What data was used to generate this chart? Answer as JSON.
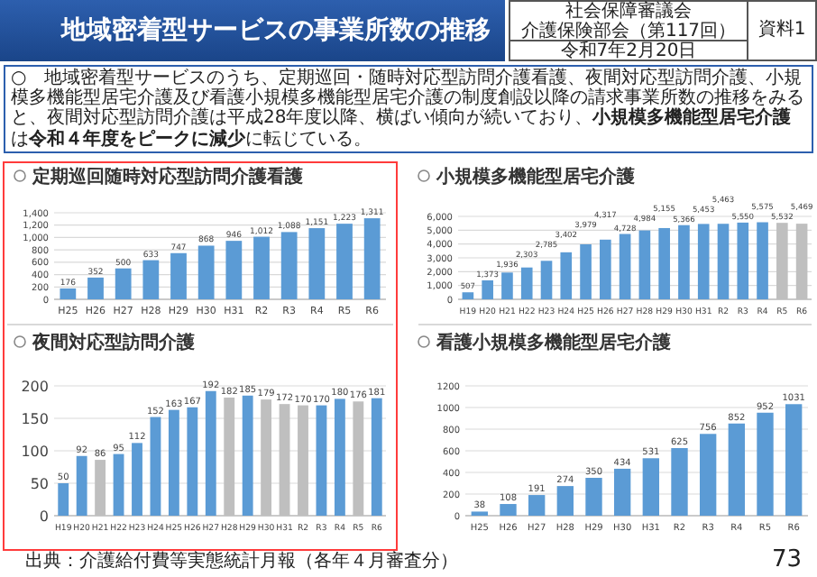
{
  "chart_data": [
    {
      "type": "other",
      "title": "地域密着型サービスの事業所数の推移",
      "annotations": [
        "社会保障審議会",
        "介護保険部会（第117回）",
        "令和7年2月20日",
        "資料1",
        "○　地域密着型サービスのうち、定期巡回・随時対応型訪問介護看護、夜間対応型訪問介護、小規模多機能型居宅介護及び看護小規模多機能型居宅介護の制度創設以降の請求事業所数の推移をみると、夜間対応型訪問介護は平成28年度以降、横ばい傾向が続いており、**小規模多機能型居宅介護**は**令和４年度をピークに減少**に転じている。",
        "出典：介護給付費等実態統計月報（各年４月審査分）",
        "73"
      ]
    },
    {
      "type": "bar",
      "title": "定期巡回随時対応型訪問介護看護",
      "categories": [
        "H25",
        "H26",
        "H27",
        "H28",
        "H29",
        "H30",
        "H31",
        "R2",
        "R3",
        "R4",
        "R5",
        "R6"
      ],
      "values": [
        176,
        352,
        500,
        633,
        747,
        868,
        946,
        1012,
        1088,
        1151,
        1223,
        1311
      ],
      "value_labels": [
        "176",
        "352",
        "500",
        "633",
        "747",
        "868",
        "946",
        "1,012",
        "1,088",
        "1,151",
        "1,223",
        "1,311"
      ],
      "color": "#5b9bd5",
      "ylim": [
        0,
        1400
      ],
      "yticks": [
        0,
        200,
        400,
        600,
        800,
        {
          "value": 1000,
          "label": "1,000"
        },
        {
          "value": 1200,
          "label": "1,200"
        },
        {
          "value": 1400,
          "label": "1,400"
        }
      ],
      "grid": "y"
    },
    {
      "type": "bar",
      "title": "小規模多機能型居宅介護",
      "categories": [
        "H19",
        "H20",
        "H21",
        "H22",
        "H23",
        "H24",
        "H25",
        "H26",
        "H27",
        "H28",
        "H29",
        "H30",
        "H31",
        "R2",
        "R3",
        "R4",
        "R5",
        "R6"
      ],
      "values": [
        507,
        1373,
        1936,
        2303,
        2785,
        3402,
        3979,
        4317,
        4728,
        4984,
        5155,
        5366,
        5453,
        5463,
        5550,
        5575,
        5532,
        5469
      ],
      "value_labels": [
        "507",
        "1,373",
        "1,936",
        "2,303",
        "2,785",
        "3,402",
        "3,979",
        "4,317",
        "4,728",
        "4,984",
        "5,155",
        "5,366",
        "5,453",
        "5,463",
        "5,550",
        "5,575",
        "5,532",
        "5,469"
      ],
      "colors": [
        "#5b9bd5",
        "#5b9bd5",
        "#5b9bd5",
        "#5b9bd5",
        "#5b9bd5",
        "#5b9bd5",
        "#5b9bd5",
        "#5b9bd5",
        "#5b9bd5",
        "#5b9bd5",
        "#5b9bd5",
        "#5b9bd5",
        "#5b9bd5",
        "#5b9bd5",
        "#5b9bd5",
        "#5b9bd5",
        "#bfbfbf",
        "#bfbfbf"
      ],
      "ylim": [
        0,
        6000
      ],
      "yticks": [
        0,
        {
          "value": 1000,
          "label": "1,000"
        },
        {
          "value": 2000,
          "label": "2,000"
        },
        {
          "value": 3000,
          "label": "3,000"
        },
        {
          "value": 4000,
          "label": "4,000"
        },
        {
          "value": 5000,
          "label": "5,000"
        },
        {
          "value": 6000,
          "label": "6,000"
        }
      ],
      "grid": "y"
    },
    {
      "type": "bar",
      "title": "夜間対応型訪問介護",
      "categories": [
        "H19",
        "H20",
        "H21",
        "H22",
        "H23",
        "H24",
        "H25",
        "H26",
        "H27",
        "H28",
        "H29",
        "H30",
        "H31",
        "R2",
        "R3",
        "R4",
        "R5",
        "R6"
      ],
      "values": [
        50,
        92,
        86,
        95,
        112,
        152,
        163,
        167,
        192,
        182,
        185,
        179,
        172,
        170,
        170,
        180,
        176,
        181
      ],
      "colors": [
        "#5b9bd5",
        "#5b9bd5",
        "#bfbfbf",
        "#5b9bd5",
        "#5b9bd5",
        "#5b9bd5",
        "#5b9bd5",
        "#5b9bd5",
        "#5b9bd5",
        "#bfbfbf",
        "#5b9bd5",
        "#bfbfbf",
        "#bfbfbf",
        "#bfbfbf",
        "#5b9bd5",
        "#5b9bd5",
        "#bfbfbf",
        "#5b9bd5"
      ],
      "data_labels": true,
      "ylim": [
        0,
        200
      ],
      "yticks": [
        0,
        50,
        100,
        150,
        200
      ],
      "grid": "y"
    },
    {
      "type": "bar",
      "title": "看護小規模多機能型居宅介護",
      "categories": [
        "H25",
        "H26",
        "H27",
        "H28",
        "H29",
        "H30",
        "H31",
        "R2",
        "R3",
        "R4",
        "R5",
        "R6"
      ],
      "values": [
        38,
        108,
        191,
        274,
        350,
        434,
        531,
        625,
        756,
        852,
        952,
        1031
      ],
      "data_labels": true,
      "color": "#5b9bd5",
      "ylim": [
        0,
        1200
      ],
      "yticks": [
        0,
        200,
        400,
        600,
        800,
        1000,
        1200
      ],
      "grid": "y"
    }
  ]
}
